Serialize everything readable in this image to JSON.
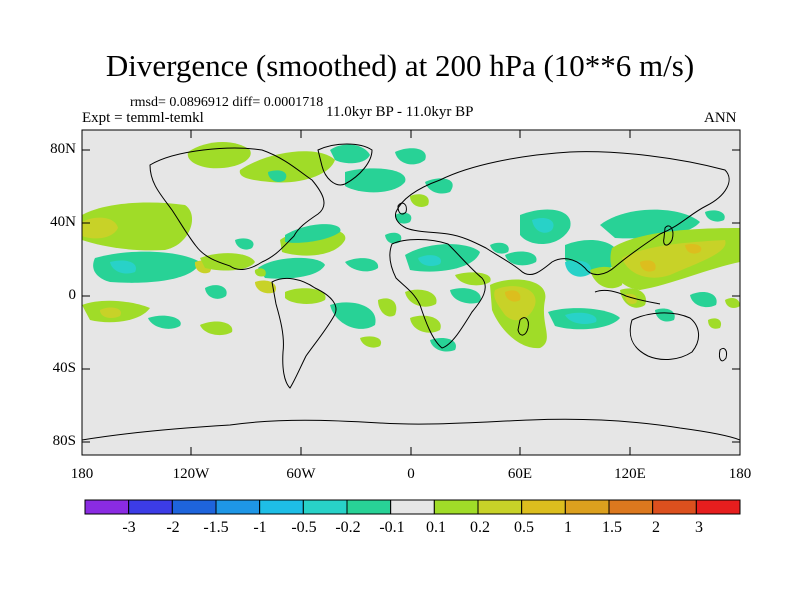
{
  "title": "Divergence (smoothed) at 200 hPa (10**6 m/s)",
  "stats": {
    "rmsd_label": "rmsd= 0.0896912 diff= 0.0001718"
  },
  "expt_label": "Expt = temml-temkl",
  "period_label": "11.0kyr BP - 11.0kyr BP",
  "season": "ANN",
  "lat_labels": [
    "80N",
    "40N",
    "0",
    "40S",
    "80S"
  ],
  "lon_labels": [
    "180",
    "120W",
    "60W",
    "0",
    "60E",
    "120E",
    "180"
  ],
  "colorbar": {
    "colors": [
      "#8a2be2",
      "#3c3ce6",
      "#1e64dc",
      "#1e96e6",
      "#1ebee6",
      "#28d2c8",
      "#28d296",
      "#e6e6e6",
      "#a0dc28",
      "#c8d228",
      "#dcbe1e",
      "#dca01e",
      "#dc781e",
      "#dc501e",
      "#e61e1e"
    ],
    "labels": [
      "-3",
      "-2",
      "-1.5",
      "-1",
      "-0.5",
      "-0.2",
      "-0.1",
      "0.1",
      "0.2",
      "0.5",
      "1",
      "1.5",
      "2",
      "3"
    ]
  }
}
